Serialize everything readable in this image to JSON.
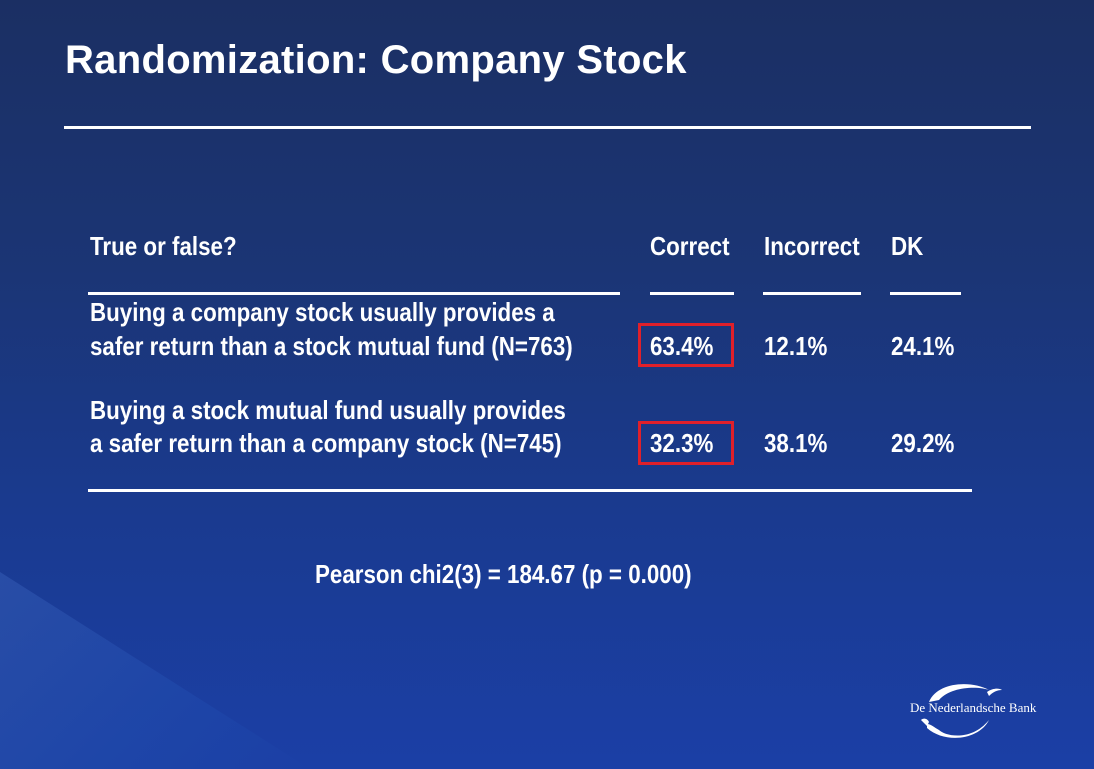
{
  "title": "Randomization: Company Stock",
  "table": {
    "header_question": "True or false?",
    "col_correct": "Correct",
    "col_incorrect": "Incorrect",
    "col_dk": "DK",
    "rows": [
      {
        "line1": "Buying a company stock usually provides a",
        "line2": "safer return than a stock mutual fund (N=763)",
        "correct": "63.4%",
        "incorrect": "12.1%",
        "dk": "24.1%"
      },
      {
        "line1": "Buying a stock mutual fund usually provides",
        "line2": "a safer return than a company stock (N=745)",
        "correct": "32.3%",
        "incorrect": "38.1%",
        "dk": "29.2%"
      }
    ]
  },
  "highlight_color": "#e0202a",
  "statistic": "Pearson chi2(3)  = 184.67 (p = 0.000)",
  "logo": {
    "text": "De Nederlandsche Bank",
    "icon": "dnb-swirl-logo-icon"
  }
}
